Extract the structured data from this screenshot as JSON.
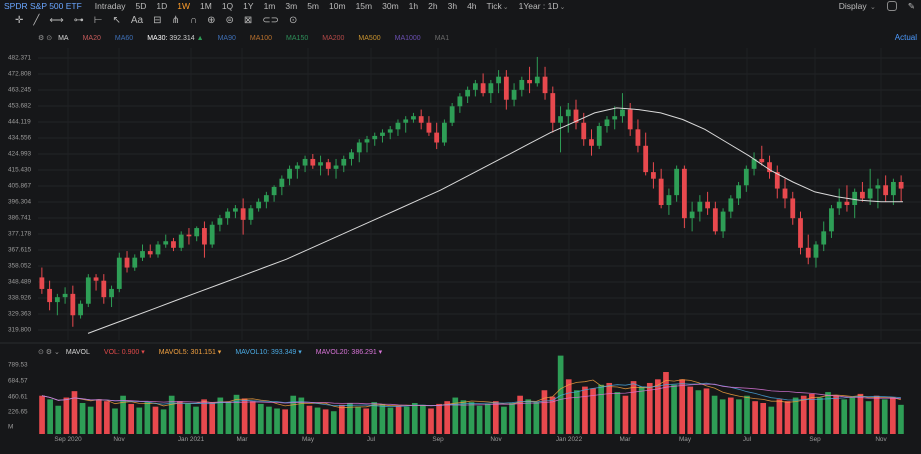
{
  "header": {
    "title": "SPDR S&P 500 ETF",
    "periods": [
      "Intraday",
      "5D",
      "1D",
      "1W",
      "1M",
      "1Q",
      "1Y",
      "1m",
      "3m",
      "5m",
      "10m",
      "15m",
      "30m",
      "1h",
      "2h",
      "3h",
      "4h",
      "Tick"
    ],
    "active_period": "1W",
    "range_label": "1Year : 1D",
    "display_label": "Display"
  },
  "indicators": {
    "ma_label": "MA",
    "items": [
      {
        "name": "MA20",
        "color": "#c45a5a"
      },
      {
        "name": "MA60",
        "color": "#3e6fb5"
      },
      {
        "name": "MA30:",
        "value": "392.314",
        "color": "#ffffff",
        "arrow": "▲"
      },
      {
        "name": "MA90",
        "color": "#3e6fb5"
      },
      {
        "name": "MA100",
        "color": "#b8702d"
      },
      {
        "name": "MA150",
        "color": "#2e8f5a"
      },
      {
        "name": "MA200",
        "color": "#b34848"
      },
      {
        "name": "MA500",
        "color": "#c7922f"
      },
      {
        "name": "MA1000",
        "color": "#6a4fb0"
      },
      {
        "name": "MA1",
        "color": "#6a6a6a"
      }
    ],
    "actual_label": "Actual"
  },
  "volume_indicators": {
    "label": "MAVOL",
    "items": [
      {
        "name": "VOL:",
        "value": "0.900",
        "color": "#e04a4a"
      },
      {
        "name": "MAVOL5:",
        "value": "301.151",
        "color": "#f0a040"
      },
      {
        "name": "MAVOL10:",
        "value": "393.349",
        "color": "#4aa8e0"
      },
      {
        "name": "MAVOL20:",
        "value": "386.291",
        "color": "#d874d8"
      }
    ]
  },
  "price_axis": [
    "482.371",
    "472.808",
    "463.245",
    "453.682",
    "444.119",
    "434.556",
    "424.993",
    "415.430",
    "405.867",
    "396.304",
    "386.741",
    "377.178",
    "367.615",
    "358.052",
    "348.489",
    "338.926",
    "329.363",
    "319.800"
  ],
  "volume_axis": [
    "789.53",
    "684.57",
    "460.61",
    "226.65",
    "M"
  ],
  "x_axis": [
    "Sep 2020",
    "Nov",
    "Jan 2021",
    "Mar",
    "May",
    "Jul",
    "Sep",
    "Nov",
    "Jan 2022",
    "Mar",
    "May",
    "Jul",
    "Sep",
    "Nov"
  ],
  "colors": {
    "up": "#2e9e56",
    "down": "#e8494e",
    "ma": "#d9d9d9",
    "mavol5": "#f0a040",
    "mavol10": "#4aa8e0",
    "mavol20": "#d874d8"
  },
  "chart_data": {
    "type": "candlestick",
    "y_range": [
      315,
      487
    ],
    "volume_range": [
      0,
      790
    ],
    "candles": [
      [
        350,
        356,
        340,
        343
      ],
      [
        343,
        348,
        330,
        335
      ],
      [
        335,
        340,
        327,
        338
      ],
      [
        338,
        344,
        334,
        340
      ],
      [
        340,
        345,
        320,
        327
      ],
      [
        327,
        336,
        325,
        334
      ],
      [
        334,
        352,
        332,
        350
      ],
      [
        350,
        352,
        342,
        348
      ],
      [
        348,
        352,
        334,
        338
      ],
      [
        338,
        345,
        332,
        343
      ],
      [
        343,
        365,
        341,
        362
      ],
      [
        362,
        366,
        353,
        356
      ],
      [
        356,
        364,
        354,
        362
      ],
      [
        362,
        370,
        360,
        366
      ],
      [
        366,
        370,
        362,
        364
      ],
      [
        364,
        372,
        362,
        370
      ],
      [
        370,
        376,
        368,
        372
      ],
      [
        372,
        374,
        366,
        368
      ],
      [
        368,
        378,
        366,
        376
      ],
      [
        376,
        380,
        370,
        375
      ],
      [
        375,
        381,
        372,
        380
      ],
      [
        380,
        384,
        362,
        370
      ],
      [
        370,
        384,
        368,
        382
      ],
      [
        382,
        388,
        378,
        386
      ],
      [
        386,
        392,
        382,
        390
      ],
      [
        390,
        394,
        386,
        392
      ],
      [
        392,
        398,
        376,
        385
      ],
      [
        385,
        394,
        382,
        392
      ],
      [
        392,
        398,
        390,
        396
      ],
      [
        396,
        402,
        392,
        400
      ],
      [
        400,
        406,
        396,
        405
      ],
      [
        405,
        412,
        400,
        410
      ],
      [
        410,
        418,
        406,
        416
      ],
      [
        416,
        420,
        410,
        418
      ],
      [
        418,
        424,
        414,
        422
      ],
      [
        422,
        425,
        416,
        418
      ],
      [
        418,
        424,
        412,
        420
      ],
      [
        420,
        422,
        412,
        416
      ],
      [
        416,
        422,
        410,
        418
      ],
      [
        418,
        424,
        414,
        422
      ],
      [
        422,
        428,
        418,
        426
      ],
      [
        426,
        434,
        420,
        432
      ],
      [
        432,
        436,
        426,
        434
      ],
      [
        434,
        438,
        430,
        436
      ],
      [
        436,
        440,
        432,
        438
      ],
      [
        438,
        442,
        434,
        440
      ],
      [
        440,
        446,
        436,
        444
      ],
      [
        444,
        448,
        438,
        446
      ],
      [
        446,
        450,
        444,
        448
      ],
      [
        448,
        452,
        440,
        444
      ],
      [
        444,
        448,
        436,
        438
      ],
      [
        438,
        444,
        428,
        432
      ],
      [
        432,
        446,
        430,
        444
      ],
      [
        444,
        456,
        442,
        454
      ],
      [
        454,
        462,
        450,
        460
      ],
      [
        460,
        466,
        456,
        464
      ],
      [
        464,
        470,
        460,
        468
      ],
      [
        468,
        474,
        460,
        462
      ],
      [
        462,
        470,
        456,
        468
      ],
      [
        468,
        476,
        462,
        472
      ],
      [
        472,
        476,
        452,
        458
      ],
      [
        458,
        468,
        454,
        464
      ],
      [
        464,
        472,
        460,
        470
      ],
      [
        470,
        478,
        462,
        468
      ],
      [
        468,
        484,
        466,
        472
      ],
      [
        472,
        478,
        458,
        462
      ],
      [
        462,
        466,
        438,
        444
      ],
      [
        444,
        454,
        426,
        448
      ],
      [
        448,
        456,
        438,
        452
      ],
      [
        452,
        458,
        440,
        444
      ],
      [
        444,
        450,
        430,
        434
      ],
      [
        434,
        440,
        424,
        430
      ],
      [
        430,
        444,
        428,
        442
      ],
      [
        442,
        448,
        438,
        446
      ],
      [
        446,
        454,
        440,
        448
      ],
      [
        448,
        462,
        444,
        452
      ],
      [
        452,
        456,
        436,
        440
      ],
      [
        440,
        446,
        426,
        430
      ],
      [
        430,
        438,
        412,
        414
      ],
      [
        414,
        420,
        404,
        410
      ],
      [
        410,
        416,
        392,
        394
      ],
      [
        394,
        404,
        388,
        400
      ],
      [
        400,
        418,
        396,
        416
      ],
      [
        416,
        418,
        380,
        386
      ],
      [
        386,
        396,
        378,
        390
      ],
      [
        390,
        400,
        384,
        396
      ],
      [
        396,
        402,
        388,
        392
      ],
      [
        392,
        396,
        376,
        378
      ],
      [
        378,
        392,
        374,
        390
      ],
      [
        390,
        400,
        386,
        398
      ],
      [
        398,
        408,
        394,
        406
      ],
      [
        406,
        418,
        402,
        416
      ],
      [
        416,
        426,
        412,
        422
      ],
      [
        422,
        430,
        418,
        420
      ],
      [
        420,
        424,
        410,
        414
      ],
      [
        414,
        418,
        398,
        404
      ],
      [
        404,
        410,
        392,
        398
      ],
      [
        398,
        402,
        382,
        386
      ],
      [
        386,
        390,
        364,
        368
      ],
      [
        368,
        376,
        358,
        362
      ],
      [
        362,
        372,
        356,
        370
      ],
      [
        370,
        384,
        366,
        378
      ],
      [
        378,
        394,
        374,
        392
      ],
      [
        392,
        404,
        388,
        396
      ],
      [
        396,
        406,
        390,
        394
      ],
      [
        394,
        404,
        386,
        402
      ],
      [
        402,
        408,
        396,
        398
      ],
      [
        398,
        416,
        394,
        404
      ],
      [
        404,
        410,
        392,
        406
      ],
      [
        406,
        412,
        396,
        400
      ],
      [
        400,
        410,
        394,
        408
      ],
      [
        408,
        412,
        396,
        404
      ]
    ],
    "ma30": [
      316,
      321,
      326,
      331,
      336,
      341,
      346,
      351,
      356,
      361,
      367,
      373,
      379,
      385,
      391,
      397,
      403,
      410,
      417,
      424,
      431,
      438,
      444,
      450,
      453,
      452,
      450,
      446,
      440,
      432,
      424,
      415,
      408,
      402,
      399,
      397,
      396,
      396
    ],
    "volume": [
      {
        "v": 420,
        "up": false
      },
      {
        "v": 380,
        "up": true
      },
      {
        "v": 310,
        "up": true
      },
      {
        "v": 400,
        "up": false
      },
      {
        "v": 470,
        "up": false
      },
      {
        "v": 340,
        "up": true
      },
      {
        "v": 300,
        "up": true
      },
      {
        "v": 380,
        "up": false
      },
      {
        "v": 360,
        "up": false
      },
      {
        "v": 280,
        "up": true
      },
      {
        "v": 420,
        "up": true
      },
      {
        "v": 330,
        "up": false
      },
      {
        "v": 290,
        "up": true
      },
      {
        "v": 350,
        "up": true
      },
      {
        "v": 300,
        "up": false
      },
      {
        "v": 270,
        "up": true
      },
      {
        "v": 420,
        "up": true
      },
      {
        "v": 360,
        "up": false
      },
      {
        "v": 330,
        "up": true
      },
      {
        "v": 300,
        "up": true
      },
      {
        "v": 380,
        "up": false
      },
      {
        "v": 340,
        "up": false
      },
      {
        "v": 400,
        "up": true
      },
      {
        "v": 350,
        "up": true
      },
      {
        "v": 430,
        "up": true
      },
      {
        "v": 390,
        "up": false
      },
      {
        "v": 360,
        "up": false
      },
      {
        "v": 330,
        "up": true
      },
      {
        "v": 300,
        "up": true
      },
      {
        "v": 280,
        "up": true
      },
      {
        "v": 270,
        "up": false
      },
      {
        "v": 420,
        "up": true
      },
      {
        "v": 400,
        "up": true
      },
      {
        "v": 310,
        "up": false
      },
      {
        "v": 290,
        "up": true
      },
      {
        "v": 270,
        "up": false
      },
      {
        "v": 250,
        "up": true
      },
      {
        "v": 320,
        "up": false
      },
      {
        "v": 340,
        "up": true
      },
      {
        "v": 300,
        "up": true
      },
      {
        "v": 280,
        "up": false
      },
      {
        "v": 350,
        "up": true
      },
      {
        "v": 330,
        "up": true
      },
      {
        "v": 290,
        "up": true
      },
      {
        "v": 310,
        "up": false
      },
      {
        "v": 300,
        "up": true
      },
      {
        "v": 340,
        "up": true
      },
      {
        "v": 320,
        "up": true
      },
      {
        "v": 280,
        "up": false
      },
      {
        "v": 330,
        "up": false
      },
      {
        "v": 360,
        "up": false
      },
      {
        "v": 400,
        "up": true
      },
      {
        "v": 370,
        "up": true
      },
      {
        "v": 350,
        "up": true
      },
      {
        "v": 310,
        "up": true
      },
      {
        "v": 330,
        "up": true
      },
      {
        "v": 360,
        "up": false
      },
      {
        "v": 300,
        "up": true
      },
      {
        "v": 340,
        "up": true
      },
      {
        "v": 420,
        "up": false
      },
      {
        "v": 380,
        "up": true
      },
      {
        "v": 350,
        "up": true
      },
      {
        "v": 480,
        "up": false
      },
      {
        "v": 410,
        "up": false
      },
      {
        "v": 860,
        "up": true
      },
      {
        "v": 600,
        "up": false
      },
      {
        "v": 480,
        "up": true
      },
      {
        "v": 520,
        "up": false
      },
      {
        "v": 500,
        "up": false
      },
      {
        "v": 540,
        "up": true
      },
      {
        "v": 560,
        "up": false
      },
      {
        "v": 460,
        "up": true
      },
      {
        "v": 420,
        "up": false
      },
      {
        "v": 580,
        "up": false
      },
      {
        "v": 520,
        "up": true
      },
      {
        "v": 560,
        "up": false
      },
      {
        "v": 600,
        "up": false
      },
      {
        "v": 680,
        "up": false
      },
      {
        "v": 540,
        "up": true
      },
      {
        "v": 600,
        "up": false
      },
      {
        "v": 520,
        "up": false
      },
      {
        "v": 480,
        "up": true
      },
      {
        "v": 500,
        "up": false
      },
      {
        "v": 420,
        "up": true
      },
      {
        "v": 380,
        "up": true
      },
      {
        "v": 400,
        "up": false
      },
      {
        "v": 380,
        "up": true
      },
      {
        "v": 420,
        "up": true
      },
      {
        "v": 360,
        "up": false
      },
      {
        "v": 340,
        "up": false
      },
      {
        "v": 300,
        "up": true
      },
      {
        "v": 380,
        "up": false
      },
      {
        "v": 360,
        "up": false
      },
      {
        "v": 400,
        "up": true
      },
      {
        "v": 420,
        "up": false
      },
      {
        "v": 440,
        "up": false
      },
      {
        "v": 400,
        "up": true
      },
      {
        "v": 460,
        "up": true
      },
      {
        "v": 420,
        "up": false
      },
      {
        "v": 380,
        "up": true
      },
      {
        "v": 400,
        "up": true
      },
      {
        "v": 440,
        "up": false
      },
      {
        "v": 360,
        "up": true
      },
      {
        "v": 420,
        "up": false
      },
      {
        "v": 380,
        "up": true
      },
      {
        "v": 400,
        "up": false
      },
      {
        "v": 320,
        "up": true
      }
    ]
  }
}
